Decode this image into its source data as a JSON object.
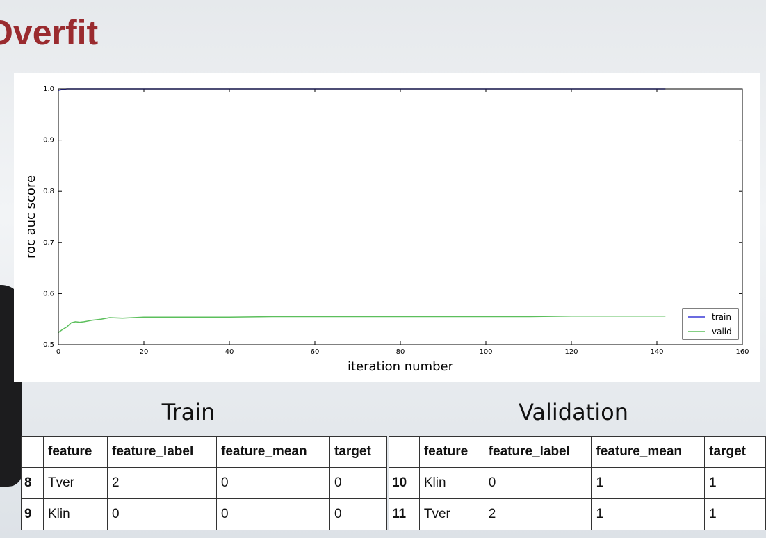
{
  "title": "Overfit",
  "chart_data": {
    "type": "line",
    "xlabel": "iteration number",
    "ylabel": "roc auc score",
    "x": [
      0,
      1,
      2,
      3,
      4,
      5,
      6,
      8,
      10,
      12,
      15,
      20,
      25,
      30,
      40,
      50,
      60,
      70,
      80,
      90,
      100,
      110,
      120,
      130,
      142
    ],
    "series": [
      {
        "name": "train",
        "color": "#3a3ad6",
        "values": [
          0.997,
          0.999,
          1.0,
          1.0,
          1.0,
          1.0,
          1.0,
          1.0,
          1.0,
          1.0,
          1.0,
          1.0,
          1.0,
          1.0,
          1.0,
          1.0,
          1.0,
          1.0,
          1.0,
          1.0,
          1.0,
          1.0,
          1.0,
          1.0,
          1.0
        ]
      },
      {
        "name": "valid",
        "color": "#5cbf5c",
        "values": [
          0.524,
          0.53,
          0.535,
          0.543,
          0.545,
          0.544,
          0.545,
          0.548,
          0.55,
          0.553,
          0.552,
          0.554,
          0.554,
          0.554,
          0.554,
          0.555,
          0.555,
          0.555,
          0.555,
          0.555,
          0.555,
          0.555,
          0.556,
          0.556,
          0.556
        ]
      }
    ],
    "xlim": [
      0,
      160
    ],
    "xticks": [
      0,
      20,
      40,
      60,
      80,
      100,
      120,
      140,
      160
    ],
    "ylim": [
      0.5,
      1.0
    ],
    "yticks": [
      0.5,
      0.6,
      0.7,
      0.8,
      0.9,
      {
        "value": 1.0,
        "label": "1.0"
      }
    ],
    "legend": "lower right"
  },
  "tables": [
    {
      "title": "Train",
      "columns": [
        "feature",
        "feature_label",
        "feature_mean",
        "target"
      ],
      "rows": [
        {
          "index": 8,
          "cells": [
            "Tver",
            2,
            0,
            0
          ]
        },
        {
          "index": 9,
          "cells": [
            "Klin",
            0,
            0,
            0
          ]
        }
      ]
    },
    {
      "title": "Validation",
      "columns": [
        "feature",
        "feature_label",
        "feature_mean",
        "target"
      ],
      "rows": [
        {
          "index": 10,
          "cells": [
            "Klin",
            0,
            1,
            1
          ]
        },
        {
          "index": 11,
          "cells": [
            "Tver",
            2,
            1,
            1
          ]
        }
      ]
    }
  ]
}
